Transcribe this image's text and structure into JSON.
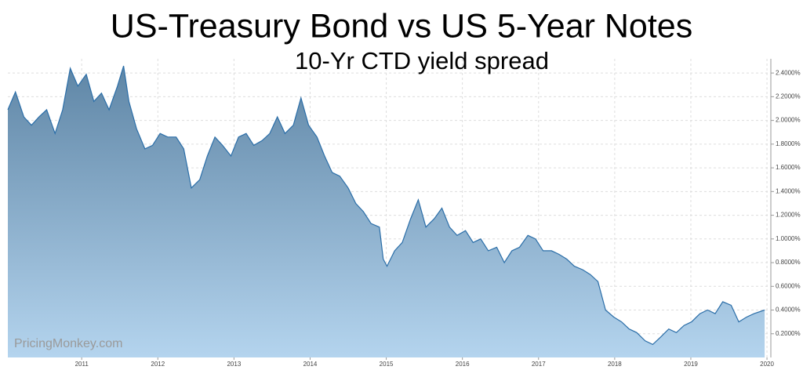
{
  "chart_data": {
    "type": "area",
    "title": "US-Treasury Bond vs US 5-Year Notes",
    "subtitle": "10-Yr CTD yield spread",
    "watermark": "PricingMonkey.com",
    "x": [
      2010.03,
      2010.13,
      2010.24,
      2010.34,
      2010.44,
      2010.54,
      2010.65,
      2010.75,
      2010.85,
      2010.95,
      2011.06,
      2011.16,
      2011.26,
      2011.36,
      2011.47,
      2011.55,
      2011.62,
      2011.72,
      2011.83,
      2011.93,
      2012.03,
      2012.13,
      2012.24,
      2012.34,
      2012.44,
      2012.55,
      2012.65,
      2012.75,
      2012.85,
      2012.96,
      2013.06,
      2013.16,
      2013.26,
      2013.37,
      2013.47,
      2013.57,
      2013.67,
      2013.78,
      2013.88,
      2013.98,
      2014.09,
      2014.19,
      2014.29,
      2014.39,
      2014.5,
      2014.6,
      2014.7,
      2014.8,
      2014.91,
      2014.96,
      2015.01,
      2015.11,
      2015.21,
      2015.32,
      2015.42,
      2015.52,
      2015.63,
      2015.73,
      2015.83,
      2015.93,
      2016.04,
      2016.14,
      2016.24,
      2016.34,
      2016.45,
      2016.55,
      2016.65,
      2016.75,
      2016.86,
      2016.96,
      2017.06,
      2017.17,
      2017.27,
      2017.37,
      2017.47,
      2017.58,
      2017.68,
      2017.78,
      2017.88,
      2017.99,
      2018.09,
      2018.19,
      2018.29,
      2018.4,
      2018.5,
      2018.6,
      2018.71,
      2018.81,
      2018.91,
      2019.01,
      2019.12,
      2019.22,
      2019.32,
      2019.42,
      2019.53,
      2019.63,
      2019.73,
      2019.83,
      2019.97
    ],
    "series": [
      {
        "color": "#2b6ea8",
        "area_gradient": [
          "#5f86a6",
          "#b4d4ee"
        ],
        "values": [
          2.09,
          2.24,
          2.03,
          1.96,
          2.03,
          2.09,
          1.89,
          2.09,
          2.44,
          2.29,
          2.39,
          2.16,
          2.23,
          2.09,
          2.29,
          2.46,
          2.16,
          1.93,
          1.76,
          1.79,
          1.89,
          1.86,
          1.86,
          1.76,
          1.43,
          1.5,
          1.7,
          1.86,
          1.79,
          1.7,
          1.86,
          1.89,
          1.79,
          1.83,
          1.89,
          2.03,
          1.89,
          1.96,
          2.19,
          1.96,
          1.86,
          1.7,
          1.56,
          1.53,
          1.43,
          1.3,
          1.23,
          1.13,
          1.1,
          0.83,
          0.77,
          0.9,
          0.97,
          1.17,
          1.33,
          1.1,
          1.17,
          1.26,
          1.1,
          1.03,
          1.07,
          0.97,
          1.0,
          0.9,
          0.93,
          0.8,
          0.9,
          0.93,
          1.03,
          1.0,
          0.9,
          0.9,
          0.87,
          0.83,
          0.77,
          0.74,
          0.7,
          0.64,
          0.4,
          0.34,
          0.3,
          0.24,
          0.21,
          0.14,
          0.11,
          0.17,
          0.24,
          0.21,
          0.27,
          0.3,
          0.37,
          0.4,
          0.37,
          0.47,
          0.44,
          0.3,
          0.34,
          0.37,
          0.4
        ]
      }
    ],
    "xlim": [
      2010.03,
      2020.02
    ],
    "xticks": [
      2011,
      2012,
      2013,
      2014,
      2015,
      2016,
      2017,
      2018,
      2019,
      2020
    ],
    "ylim": [
      0,
      2.52
    ],
    "yticks": [
      {
        "value": 0.2,
        "label": "0.2000%"
      },
      {
        "value": 0.4,
        "label": "0.4000%"
      },
      {
        "value": 0.6,
        "label": "0.6000%"
      },
      {
        "value": 0.8,
        "label": "0.8000%"
      },
      {
        "value": 1.0,
        "label": "1.0000%"
      },
      {
        "value": 1.2,
        "label": "1.2000%"
      },
      {
        "value": 1.4,
        "label": "1.4000%"
      },
      {
        "value": 1.6,
        "label": "1.6000%"
      },
      {
        "value": 1.8,
        "label": "1.8000%"
      },
      {
        "value": 2.0,
        "label": "2.0000%"
      },
      {
        "value": 2.2,
        "label": "2.2000%"
      },
      {
        "value": 2.4,
        "label": "2.4000%"
      }
    ],
    "y_axis_side": "right",
    "grid": true
  }
}
